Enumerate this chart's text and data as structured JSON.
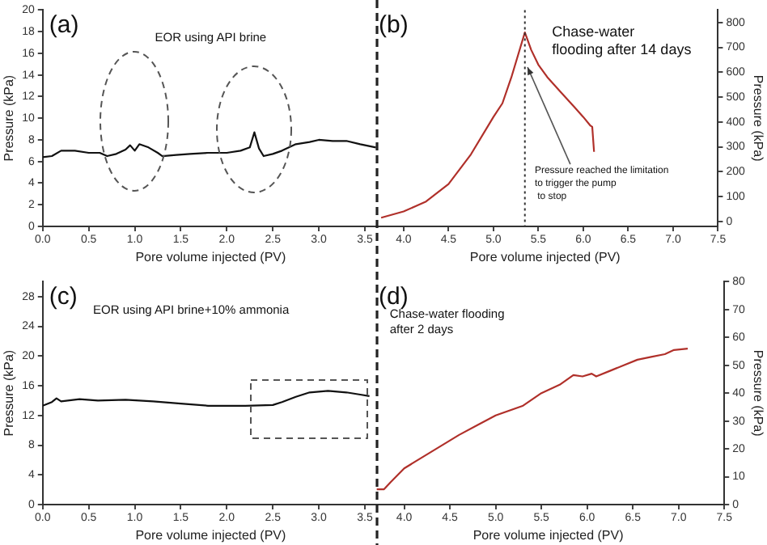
{
  "chart_data": [
    {
      "type": "line",
      "title": "(a)",
      "xlabel": "Pore volume injected (PV)",
      "ylabel": "Pressure (kPa)",
      "annotations": [
        "EOR using API brine"
      ],
      "xlim": [
        0,
        3.65
      ],
      "ylim": [
        0,
        20
      ],
      "xticks": [
        {
          "value": 0,
          "label": "0.0"
        },
        {
          "value": 0.5,
          "label": "0.5"
        },
        {
          "value": 1,
          "label": "1.0"
        },
        {
          "value": 1.5,
          "label": "1.5"
        },
        {
          "value": 2,
          "label": "2.0"
        },
        {
          "value": 2.5,
          "label": "2.5"
        },
        {
          "value": 3,
          "label": "3.0"
        },
        {
          "value": 3.5,
          "label": "3.5"
        }
      ],
      "yticks": [
        0,
        2,
        4,
        6,
        8,
        10,
        12,
        14,
        16,
        18,
        20
      ],
      "grid": false,
      "series": [
        {
          "color": "#111111",
          "x": [
            0,
            0.1,
            0.2,
            0.35,
            0.5,
            0.62,
            0.7,
            0.8,
            0.9,
            0.95,
            1.0,
            1.05,
            1.15,
            1.25,
            1.3,
            1.45,
            1.6,
            1.8,
            2.0,
            2.15,
            2.25,
            2.3,
            2.35,
            2.4,
            2.5,
            2.6,
            2.75,
            2.9,
            3.0,
            3.15,
            3.3,
            3.45,
            3.62
          ],
          "values": [
            6.4,
            6.5,
            7.0,
            7.0,
            6.8,
            6.8,
            6.5,
            6.7,
            7.1,
            7.5,
            7.0,
            7.6,
            7.3,
            6.8,
            6.5,
            6.6,
            6.7,
            6.8,
            6.8,
            7.0,
            7.3,
            8.7,
            7.2,
            6.5,
            6.7,
            7.0,
            7.6,
            7.8,
            8.0,
            7.9,
            7.9,
            7.6,
            7.3
          ]
        }
      ]
    },
    {
      "type": "line",
      "title": "(b)",
      "xlabel": "Pore volume injected (PV)",
      "ylabel": "Pressure (kPa)",
      "annotations": [
        "Chase-water\nflooding after 14 days",
        {
          "text": "Pressure reached the limitation\nto trigger the pump\n to stop",
          "x": 5.38,
          "y": 620
        }
      ],
      "xlim": [
        3.65,
        7.5
      ],
      "ylim": [
        -20,
        850
      ],
      "xticks": [
        {
          "value": 4,
          "label": "4.0"
        },
        {
          "value": 4.5,
          "label": "4.5"
        },
        {
          "value": 5,
          "label": "5.0"
        },
        {
          "value": 5.5,
          "label": "5.5"
        },
        {
          "value": 6,
          "label": "6.0"
        },
        {
          "value": 6.5,
          "label": "6.5"
        },
        {
          "value": 7,
          "label": "7.0"
        },
        {
          "value": 7.5,
          "label": "7.5"
        }
      ],
      "yticks": [
        0,
        100,
        200,
        300,
        400,
        500,
        600,
        700,
        800
      ],
      "grid": false,
      "ref_lines": [
        {
          "axis": "x",
          "value": 5.35,
          "line_style": "dotted",
          "color": "#333333"
        }
      ],
      "series": [
        {
          "color": "#b0302a",
          "x": [
            3.75,
            4.0,
            4.25,
            4.5,
            4.75,
            5.0,
            5.1,
            5.2,
            5.3,
            5.35,
            5.42,
            5.5,
            5.6,
            5.75,
            5.9,
            6.0,
            6.08,
            6.1,
            6.12
          ],
          "values": [
            15,
            40,
            80,
            150,
            270,
            420,
            475,
            580,
            700,
            760,
            690,
            630,
            580,
            520,
            460,
            420,
            385,
            380,
            280
          ]
        }
      ]
    },
    {
      "type": "line",
      "title": "(c)",
      "xlabel": "Pore volume injected (PV)",
      "ylabel": "Pressure (kPa)",
      "annotations": [
        "EOR using API brine+10% ammonia"
      ],
      "xlim": [
        0,
        3.65
      ],
      "ylim": [
        0,
        30
      ],
      "xticks": [
        {
          "value": 0,
          "label": "0.0"
        },
        {
          "value": 0.5,
          "label": "0.5"
        },
        {
          "value": 1,
          "label": "1.0"
        },
        {
          "value": 1.5,
          "label": "1.5"
        },
        {
          "value": 2,
          "label": "2.0"
        },
        {
          "value": 2.5,
          "label": "2.5"
        },
        {
          "value": 3,
          "label": "3.0"
        },
        {
          "value": 3.5,
          "label": "3.5"
        }
      ],
      "yticks": [
        0,
        4,
        8,
        12,
        16,
        20,
        24,
        28
      ],
      "grid": false,
      "series": [
        {
          "color": "#111111",
          "x": [
            0,
            0.1,
            0.15,
            0.2,
            0.4,
            0.6,
            0.9,
            1.2,
            1.5,
            1.8,
            2.2,
            2.5,
            2.6,
            2.75,
            2.9,
            3.1,
            3.3,
            3.45,
            3.55
          ],
          "values": [
            13.3,
            13.8,
            14.3,
            13.9,
            14.2,
            14.0,
            14.1,
            13.9,
            13.6,
            13.3,
            13.3,
            13.4,
            13.8,
            14.5,
            15.1,
            15.3,
            15.1,
            14.8,
            14.6
          ]
        }
      ]
    },
    {
      "type": "line",
      "title": "(d)",
      "xlabel": "Pore volume injected (PV)",
      "ylabel": "Pressure (kPa)",
      "annotations": [
        "Chase-water flooding\nafter 2 days"
      ],
      "xlim": [
        3.65,
        7.5
      ],
      "ylim": [
        0,
        80
      ],
      "xticks": [
        {
          "value": 4,
          "label": "4.0"
        },
        {
          "value": 4.5,
          "label": "4.5"
        },
        {
          "value": 5,
          "label": "5.0"
        },
        {
          "value": 5.5,
          "label": "5.5"
        },
        {
          "value": 6,
          "label": "6.0"
        },
        {
          "value": 6.5,
          "label": "6.5"
        },
        {
          "value": 7,
          "label": "7.0"
        },
        {
          "value": 7.5,
          "label": "7.5"
        }
      ],
      "yticks": [
        0,
        10,
        20,
        30,
        40,
        50,
        60,
        70,
        80
      ],
      "grid": false,
      "series": [
        {
          "color": "#b0302a",
          "x": [
            3.7,
            3.78,
            3.85,
            4.0,
            4.2,
            4.4,
            4.6,
            4.8,
            5.0,
            5.3,
            5.5,
            5.7,
            5.85,
            5.95,
            6.05,
            6.1,
            6.25,
            6.4,
            6.55,
            6.7,
            6.85,
            6.95,
            7.1
          ],
          "values": [
            5.5,
            5.5,
            8,
            13,
            17,
            21,
            25,
            28.5,
            32,
            35.5,
            40,
            43,
            46.5,
            46,
            47,
            46,
            48,
            50,
            52,
            53,
            54,
            55.5,
            56
          ]
        }
      ]
    }
  ]
}
